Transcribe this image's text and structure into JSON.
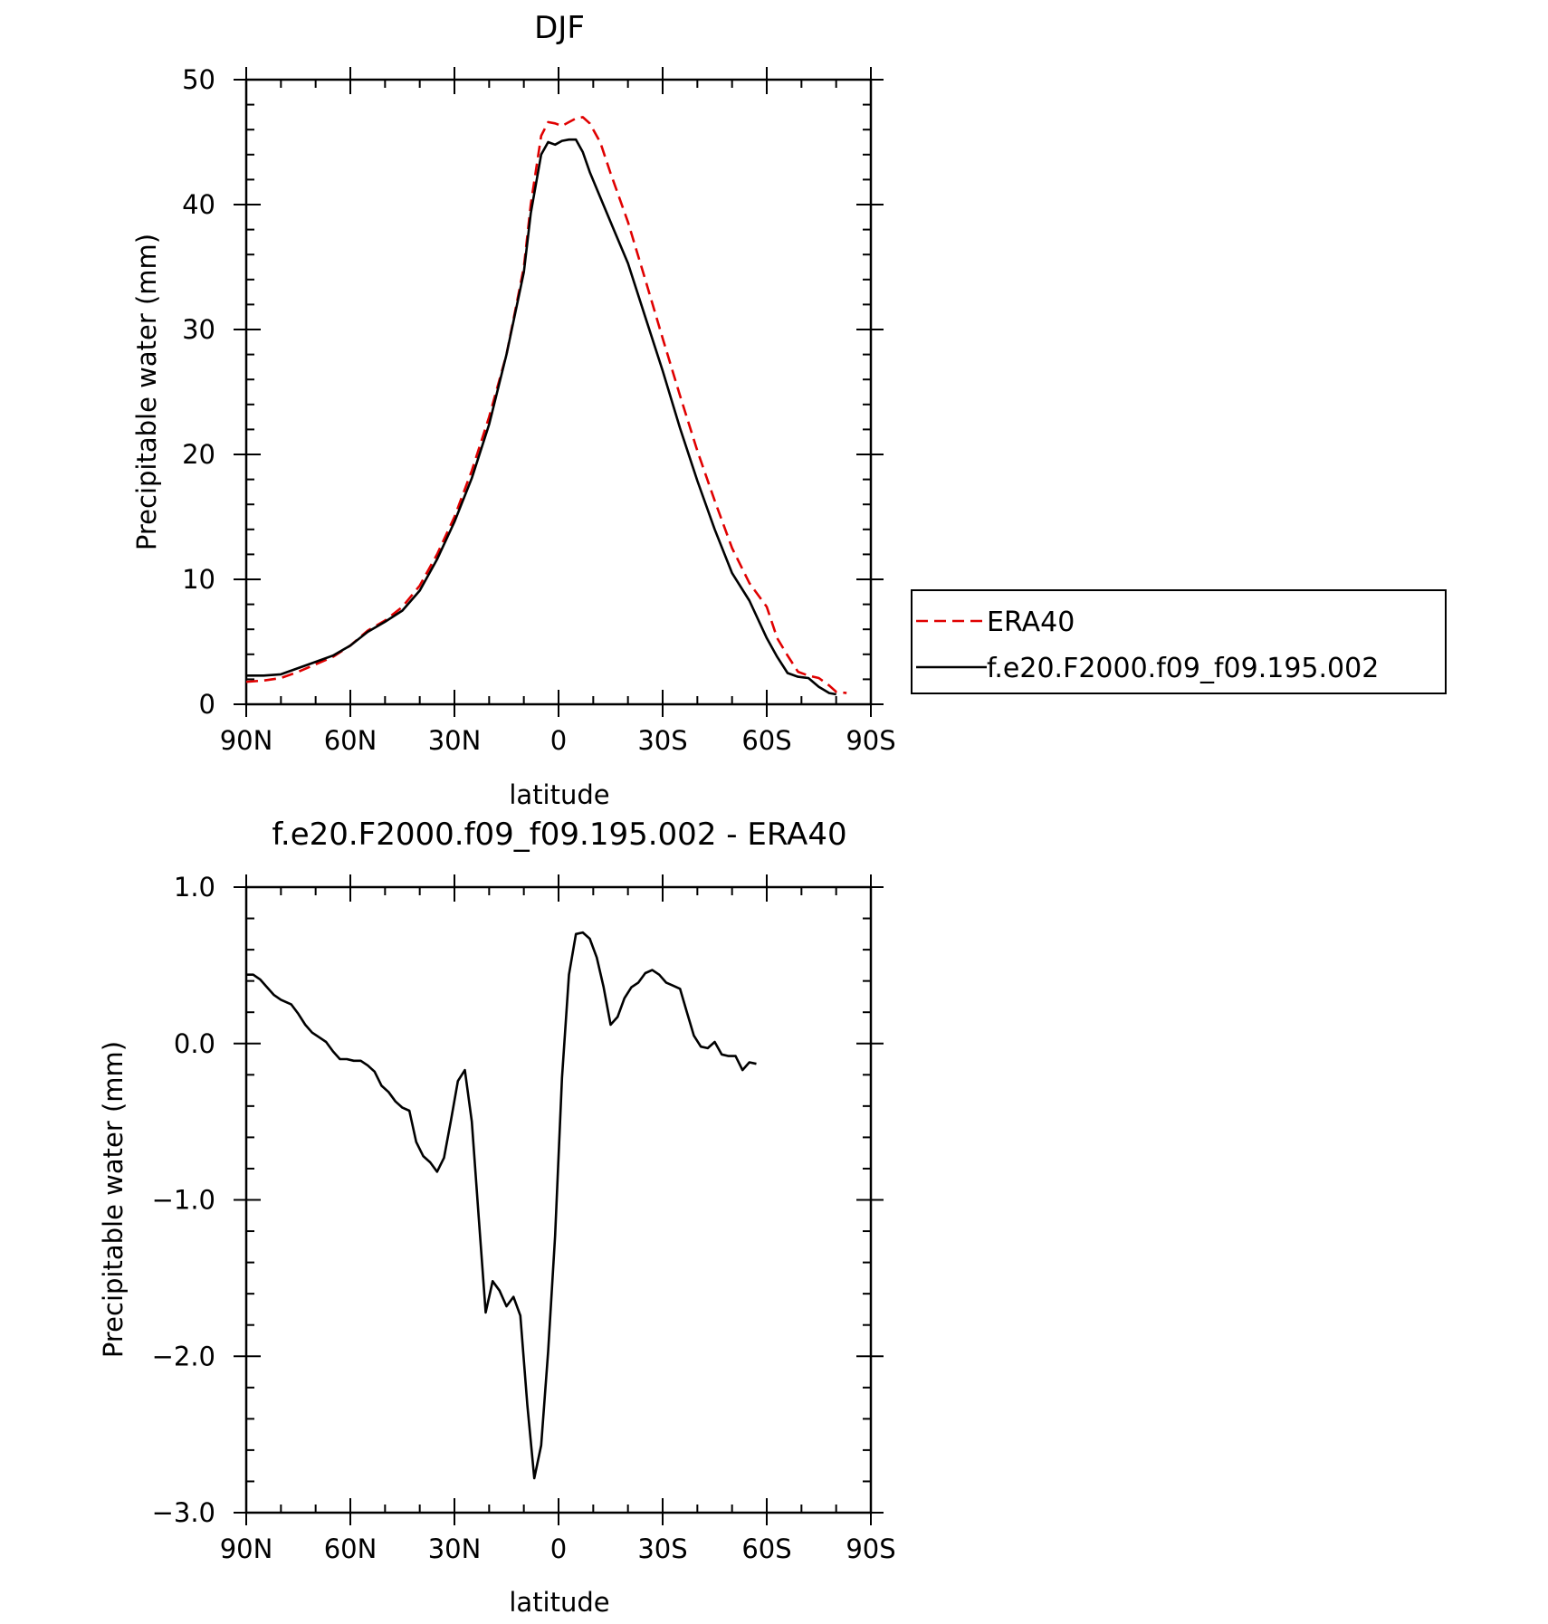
{
  "chart_data": [
    {
      "type": "line",
      "title": "DJF",
      "xlabel": "latitude",
      "ylabel": "Precipitable water (mm)",
      "xlim": [
        90,
        -90
      ],
      "ylim": [
        0,
        50
      ],
      "x_ticks": [
        90,
        60,
        30,
        0,
        -30,
        -60,
        -90
      ],
      "x_tick_labels": [
        "90N",
        "60N",
        "30N",
        "0",
        "30S",
        "60S",
        "90S"
      ],
      "y_ticks": [
        0,
        10,
        20,
        30,
        40,
        50
      ],
      "y_tick_labels": [
        "0",
        "10",
        "20",
        "30",
        "40",
        "50"
      ],
      "legend_position": "right",
      "series": [
        {
          "name": "ERA40",
          "color": "#e00000",
          "style": "dashed",
          "points": [
            [
              90,
              1.8
            ],
            [
              85,
              1.9
            ],
            [
              80,
              2.1
            ],
            [
              75,
              2.6
            ],
            [
              70,
              3.2
            ],
            [
              65,
              3.8
            ],
            [
              60,
              4.7
            ],
            [
              55,
              5.9
            ],
            [
              50,
              6.7
            ],
            [
              45,
              7.8
            ],
            [
              40,
              9.5
            ],
            [
              35,
              12.0
            ],
            [
              30,
              15.0
            ],
            [
              25,
              18.7
            ],
            [
              20,
              23.0
            ],
            [
              15,
              28.0
            ],
            [
              10,
              35.0
            ],
            [
              8,
              40.0
            ],
            [
              5,
              45.5
            ],
            [
              3,
              46.6
            ],
            [
              1,
              46.5
            ],
            [
              -1,
              46.3
            ],
            [
              -3,
              46.6
            ],
            [
              -5,
              46.9
            ],
            [
              -7,
              47.0
            ],
            [
              -9,
              46.5
            ],
            [
              -12,
              45.0
            ],
            [
              -15,
              42.5
            ],
            [
              -20,
              38.6
            ],
            [
              -25,
              34.0
            ],
            [
              -30,
              29.3
            ],
            [
              -35,
              24.7
            ],
            [
              -40,
              20.3
            ],
            [
              -45,
              16.3
            ],
            [
              -50,
              12.5
            ],
            [
              -55,
              9.7
            ],
            [
              -60,
              7.8
            ],
            [
              -63,
              5.3
            ],
            [
              -66,
              3.9
            ],
            [
              -69,
              2.6
            ],
            [
              -72,
              2.3
            ],
            [
              -75,
              2.1
            ],
            [
              -78,
              1.5
            ],
            [
              -80,
              1.0
            ],
            [
              -83,
              0.9
            ]
          ]
        },
        {
          "name": "f.e20.F2000.f09_f09.195.002",
          "color": "#000000",
          "style": "solid",
          "points": [
            [
              90,
              2.3
            ],
            [
              85,
              2.3
            ],
            [
              80,
              2.4
            ],
            [
              75,
              2.9
            ],
            [
              70,
              3.4
            ],
            [
              65,
              3.9
            ],
            [
              60,
              4.7
            ],
            [
              55,
              5.8
            ],
            [
              50,
              6.6
            ],
            [
              45,
              7.5
            ],
            [
              40,
              9.1
            ],
            [
              35,
              11.6
            ],
            [
              30,
              14.6
            ],
            [
              25,
              18.1
            ],
            [
              20,
              22.4
            ],
            [
              15,
              28.0
            ],
            [
              10,
              34.6
            ],
            [
              8,
              39.3
            ],
            [
              5,
              44.0
            ],
            [
              3,
              45.0
            ],
            [
              1,
              44.8
            ],
            [
              -1,
              45.1
            ],
            [
              -3,
              45.2
            ],
            [
              -5,
              45.2
            ],
            [
              -7,
              44.2
            ],
            [
              -9,
              42.6
            ],
            [
              -12,
              40.6
            ],
            [
              -15,
              38.6
            ],
            [
              -20,
              35.3
            ],
            [
              -25,
              31.0
            ],
            [
              -30,
              26.7
            ],
            [
              -35,
              22.1
            ],
            [
              -40,
              17.9
            ],
            [
              -45,
              14.0
            ],
            [
              -50,
              10.5
            ],
            [
              -55,
              8.3
            ],
            [
              -60,
              5.3
            ],
            [
              -63,
              3.8
            ],
            [
              -66,
              2.5
            ],
            [
              -69,
              2.2
            ],
            [
              -72,
              2.1
            ],
            [
              -75,
              1.4
            ],
            [
              -78,
              0.9
            ],
            [
              -80,
              0.8
            ]
          ]
        }
      ]
    },
    {
      "type": "line",
      "title": "f.e20.F2000.f09_f09.195.002 - ERA40",
      "xlabel": "latitude",
      "ylabel": "Precipitable water (mm)",
      "xlim": [
        90,
        -90
      ],
      "ylim": [
        -3.0,
        1.0
      ],
      "x_ticks": [
        90,
        60,
        30,
        0,
        -30,
        -60,
        -90
      ],
      "x_tick_labels": [
        "90N",
        "60N",
        "30N",
        "0",
        "30S",
        "60S",
        "90S"
      ],
      "y_ticks": [
        1.0,
        0.0,
        -1.0,
        -2.0,
        -3.0
      ],
      "y_tick_labels": [
        "1.0",
        "0.0",
        "−1.0",
        "−2.0",
        "−3.0"
      ],
      "series": [
        {
          "color": "#000000",
          "style": "solid",
          "points": [
            [
              90,
              0.44
            ],
            [
              88,
              0.44
            ],
            [
              86,
              0.41
            ],
            [
              84,
              0.36
            ],
            [
              82,
              0.31
            ],
            [
              80,
              0.28
            ],
            [
              77,
              0.25
            ],
            [
              75,
              0.19
            ],
            [
              73,
              0.12
            ],
            [
              71,
              0.07
            ],
            [
              69,
              0.04
            ],
            [
              67,
              0.01
            ],
            [
              65,
              -0.05
            ],
            [
              63,
              -0.1
            ],
            [
              61,
              -0.1
            ],
            [
              59,
              -0.11
            ],
            [
              57,
              -0.11
            ],
            [
              55,
              -0.14
            ],
            [
              53,
              -0.18
            ],
            [
              51,
              -0.27
            ],
            [
              49,
              -0.31
            ],
            [
              47,
              -0.37
            ],
            [
              45,
              -0.41
            ],
            [
              43,
              -0.43
            ],
            [
              41,
              -0.63
            ],
            [
              39,
              -0.72
            ],
            [
              37,
              -0.76
            ],
            [
              35,
              -0.82
            ],
            [
              33,
              -0.73
            ],
            [
              31,
              -0.49
            ],
            [
              29,
              -0.24
            ],
            [
              27,
              -0.17
            ],
            [
              25,
              -0.5
            ],
            [
              23,
              -1.11
            ],
            [
              21,
              -1.72
            ],
            [
              19,
              -1.52
            ],
            [
              17,
              -1.58
            ],
            [
              15,
              -1.68
            ],
            [
              13,
              -1.62
            ],
            [
              11,
              -1.74
            ],
            [
              9,
              -2.31
            ],
            [
              7,
              -2.78
            ],
            [
              5,
              -2.57
            ],
            [
              3,
              -1.97
            ],
            [
              1,
              -1.23
            ],
            [
              -1,
              -0.22
            ],
            [
              -3,
              0.44
            ],
            [
              -5,
              0.7
            ],
            [
              -7,
              0.71
            ],
            [
              -9,
              0.67
            ],
            [
              -11,
              0.55
            ],
            [
              -13,
              0.36
            ],
            [
              -15,
              0.12
            ],
            [
              -17,
              0.17
            ],
            [
              -19,
              0.29
            ],
            [
              -21,
              0.36
            ],
            [
              -23,
              0.39
            ],
            [
              -25,
              0.45
            ],
            [
              -27,
              0.47
            ],
            [
              -29,
              0.44
            ],
            [
              -31,
              0.39
            ],
            [
              -33,
              0.37
            ],
            [
              -35,
              0.35
            ],
            [
              -37,
              0.2
            ],
            [
              -39,
              0.05
            ],
            [
              -41,
              -0.02
            ],
            [
              -43,
              -0.03
            ],
            [
              -45,
              0.01
            ],
            [
              -47,
              -0.07
            ],
            [
              -49,
              -0.08
            ],
            [
              -51,
              -0.08
            ],
            [
              -53,
              -0.17
            ],
            [
              -55,
              -0.12
            ],
            [
              -57,
              -0.13
            ]
          ]
        }
      ]
    }
  ]
}
